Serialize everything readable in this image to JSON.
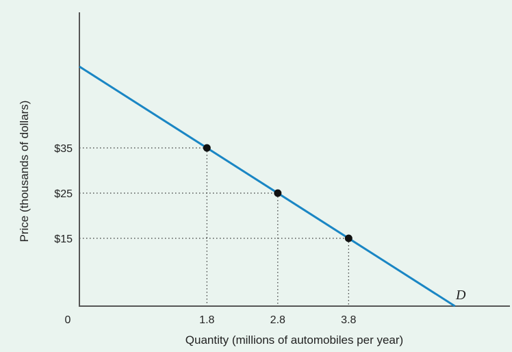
{
  "chart_data": {
    "type": "line",
    "title": "",
    "xlabel": "Quantity (millions of automobiles per year)",
    "ylabel": "Price (thousands of dollars)",
    "origin_label": "0",
    "curve_label": "D",
    "x_ticks": [
      "1.8",
      "2.8",
      "3.8"
    ],
    "y_ticks": [
      "$35",
      "$25",
      "$15"
    ],
    "xlim": [
      0,
      5.3
    ],
    "ylim": [
      0,
      53.7
    ],
    "grid": false,
    "series": [
      {
        "name": "D",
        "x": [
          0,
          5.3
        ],
        "y": [
          53,
          0
        ]
      }
    ],
    "points": [
      {
        "x": 1.8,
        "y": 35
      },
      {
        "x": 2.8,
        "y": 25
      },
      {
        "x": 3.8,
        "y": 15
      }
    ],
    "colors": {
      "curve": "#1a86c4",
      "axis": "#555555",
      "points": "#111111",
      "guides": "#333333",
      "background": "#eaf4ef"
    }
  }
}
